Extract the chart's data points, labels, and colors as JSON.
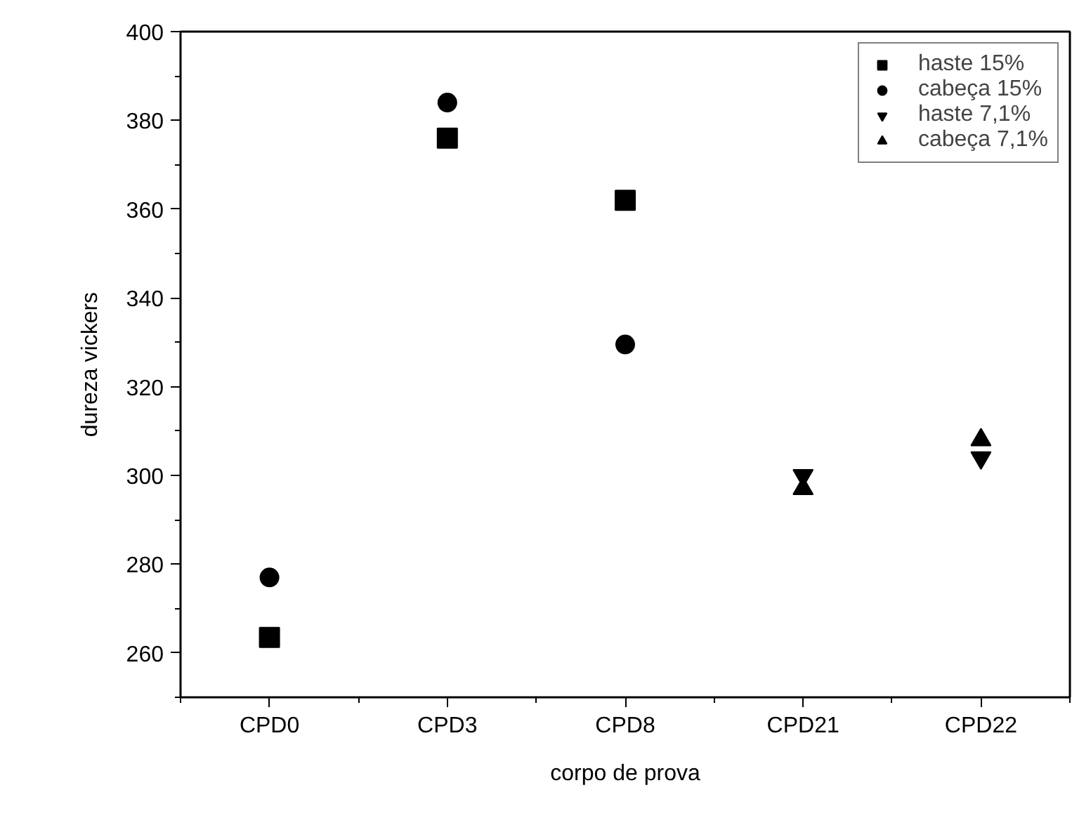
{
  "chart_data": {
    "type": "scatter",
    "xlabel": "corpo de prova",
    "ylabel": "dureza vickers",
    "categories": [
      "CPD0",
      "CPD3",
      "CPD8",
      "CPD21",
      "CPD22"
    ],
    "ylim": [
      250,
      400
    ],
    "yticks": [
      260,
      280,
      300,
      320,
      340,
      360,
      380,
      400
    ],
    "grid": false,
    "legend": "top right",
    "series": [
      {
        "name": "haste 15%",
        "color": "#000000",
        "marker": "square",
        "values": [
          263.5,
          376,
          362,
          null,
          null
        ]
      },
      {
        "name": "cabeça 15%",
        "color": "#000000",
        "marker": "circle",
        "values": [
          277,
          384,
          329.5,
          null,
          null
        ]
      },
      {
        "name": "haste 7,1%",
        "color": "#000000",
        "values": [
          null,
          null,
          null,
          300,
          304
        ]
      },
      {
        "name": "cabeça 7,1%",
        "color": "#000000",
        "marker": "triangle",
        "values": [
          null,
          null,
          null,
          297,
          308
        ]
      }
    ]
  }
}
